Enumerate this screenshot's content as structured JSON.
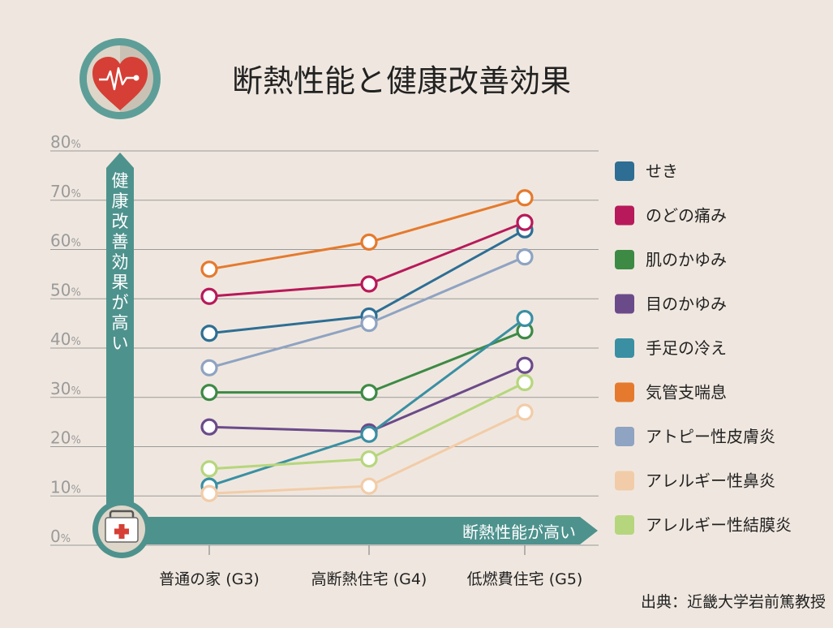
{
  "title": "断熱性能と健康改善効果",
  "source": "出典：近畿大学岩前篤教授",
  "y_arrow_label": "健康改善効果が高い",
  "x_arrow_label": "断熱性能が高い",
  "icons": {
    "top": "heart-pulse-icon",
    "bottom": "medical-kit-icon"
  },
  "colors": {
    "background": "#efe7df",
    "teal": "#4e928d",
    "grid": "#9a9a9a",
    "tick": "#9a9a9a"
  },
  "chart_data": {
    "type": "line",
    "title": "断熱性能と健康改善効果",
    "xlabel": "断熱性能が高い",
    "ylabel": "健康改善効果が高い",
    "categories": [
      "普通の家 (G3)",
      "高断熱住宅 (G4)",
      "低燃費住宅 (G5)"
    ],
    "y_ticks": [
      "0%",
      "10%",
      "20%",
      "30%",
      "40%",
      "50%",
      "60%",
      "70%",
      "80%"
    ],
    "ylim": [
      0,
      80
    ],
    "grid": true,
    "legend_position": "right",
    "series": [
      {
        "name": "せき",
        "color": "#2e6e94",
        "values": [
          43,
          46.5,
          64
        ]
      },
      {
        "name": "のどの痛み",
        "color": "#b8195a",
        "values": [
          50.5,
          53,
          65.5
        ]
      },
      {
        "name": "肌のかゆみ",
        "color": "#3d8a45",
        "values": [
          31,
          31,
          43.5
        ]
      },
      {
        "name": "目のかゆみ",
        "color": "#6b4a8a",
        "values": [
          24,
          23,
          36.5
        ]
      },
      {
        "name": "手足の冷え",
        "color": "#3a8fa3",
        "values": [
          12,
          22.5,
          46
        ]
      },
      {
        "name": "気管支喘息",
        "color": "#e57a2e",
        "values": [
          56,
          61.5,
          70.5
        ]
      },
      {
        "name": "アトピー性皮膚炎",
        "color": "#8fa3c2",
        "values": [
          36,
          45,
          58.5
        ]
      },
      {
        "name": "アレルギー性鼻炎",
        "color": "#f2cca8",
        "values": [
          10.5,
          12,
          27
        ]
      },
      {
        "name": "アレルギー性結膜炎",
        "color": "#b6d67d",
        "values": [
          15.5,
          17.5,
          33
        ]
      }
    ]
  }
}
